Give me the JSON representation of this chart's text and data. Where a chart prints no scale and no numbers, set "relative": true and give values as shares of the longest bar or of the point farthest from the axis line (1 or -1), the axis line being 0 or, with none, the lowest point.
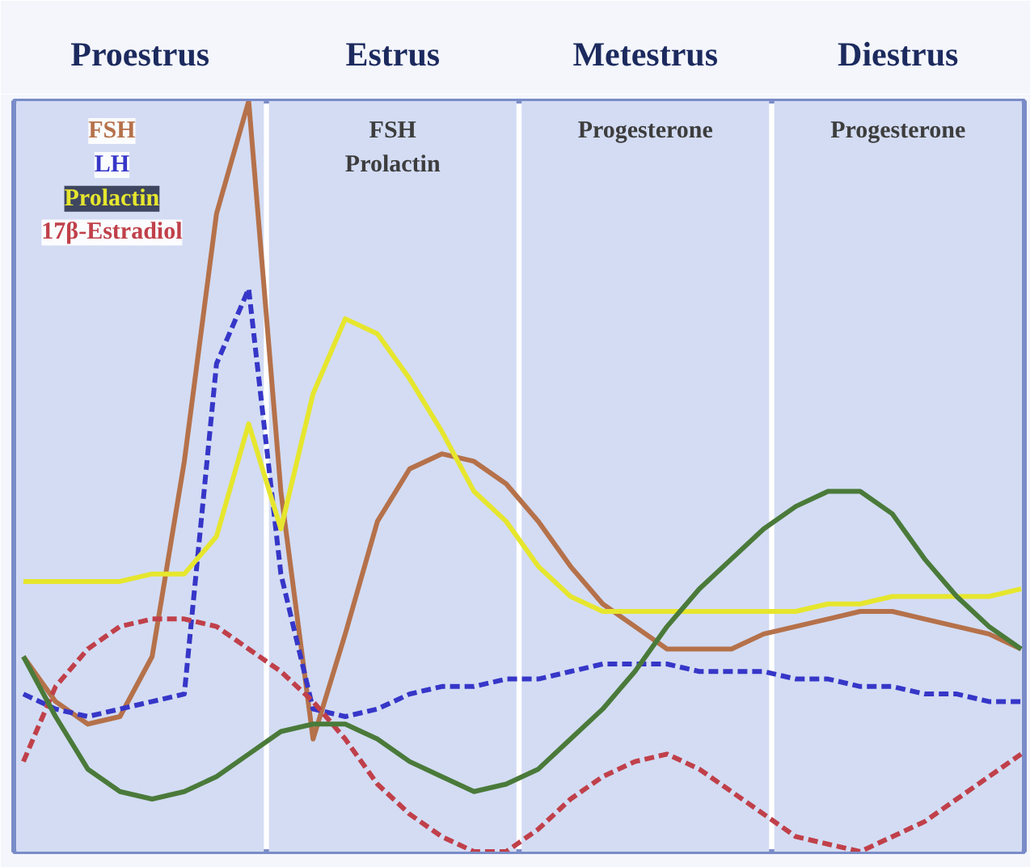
{
  "chart_data": {
    "type": "line",
    "relative": true,
    "grid": false,
    "categories": [
      null,
      null,
      null,
      null,
      null,
      null,
      null,
      null,
      null,
      null,
      null,
      null,
      null,
      null,
      null,
      null,
      null,
      null,
      null,
      null,
      null,
      null,
      null,
      null,
      null,
      null,
      null,
      null,
      null,
      null,
      null,
      null
    ],
    "series": [
      {
        "name": "FSH",
        "color": "#b5714a",
        "line_style": "solid",
        "values": [
          0.26,
          0.2,
          0.17,
          0.18,
          0.26,
          0.52,
          0.85,
          1.0,
          0.48,
          0.15,
          0.29,
          0.44,
          0.51,
          0.53,
          0.52,
          0.49,
          0.44,
          0.38,
          0.33,
          0.3,
          0.27,
          0.27,
          0.27,
          0.29,
          0.3,
          0.31,
          0.32,
          0.32,
          0.31,
          0.3,
          0.29,
          0.27
        ]
      },
      {
        "name": "LH",
        "color": "#3636c8",
        "line_style": "dashed",
        "values": [
          0.21,
          0.19,
          0.18,
          0.19,
          0.2,
          0.21,
          0.65,
          0.75,
          0.37,
          0.19,
          0.18,
          0.19,
          0.21,
          0.22,
          0.22,
          0.23,
          0.23,
          0.24,
          0.25,
          0.25,
          0.25,
          0.24,
          0.24,
          0.24,
          0.23,
          0.23,
          0.22,
          0.22,
          0.21,
          0.21,
          0.2,
          0.2
        ]
      },
      {
        "name": "Prolactin",
        "color": "#e6e62e",
        "line_style": "solid",
        "values": [
          0.36,
          0.36,
          0.36,
          0.36,
          0.37,
          0.37,
          0.42,
          0.57,
          0.43,
          0.61,
          0.71,
          0.69,
          0.63,
          0.56,
          0.48,
          0.44,
          0.38,
          0.34,
          0.32,
          0.32,
          0.32,
          0.32,
          0.32,
          0.32,
          0.32,
          0.33,
          0.33,
          0.34,
          0.34,
          0.34,
          0.34,
          0.35
        ]
      },
      {
        "name": "17β-Estradiol",
        "color": "#c0404a",
        "line_style": "dashed",
        "values": [
          0.12,
          0.22,
          0.27,
          0.3,
          0.31,
          0.31,
          0.3,
          0.27,
          0.24,
          0.2,
          0.15,
          0.09,
          0.05,
          0.02,
          0.0,
          0.0,
          0.03,
          0.07,
          0.1,
          0.12,
          0.13,
          0.11,
          0.08,
          0.05,
          0.02,
          0.01,
          0.0,
          0.02,
          0.04,
          0.07,
          0.1,
          0.13
        ]
      },
      {
        "color": "#4a7a3a",
        "line_style": "solid",
        "values": [
          0.26,
          0.18,
          0.11,
          0.08,
          0.07,
          0.08,
          0.1,
          0.13,
          0.16,
          0.17,
          0.17,
          0.15,
          0.12,
          0.1,
          0.08,
          0.09,
          0.11,
          0.15,
          0.19,
          0.24,
          0.3,
          0.35,
          0.39,
          0.43,
          0.46,
          0.48,
          0.48,
          0.45,
          0.39,
          0.34,
          0.3,
          0.27
        ]
      }
    ],
    "annotations": [
      "Proestrus",
      "Estrus",
      "Metestrus",
      "Diestrus",
      "FSH",
      "Prolactin",
      "Progesterone",
      "Progesterone"
    ]
  }
}
